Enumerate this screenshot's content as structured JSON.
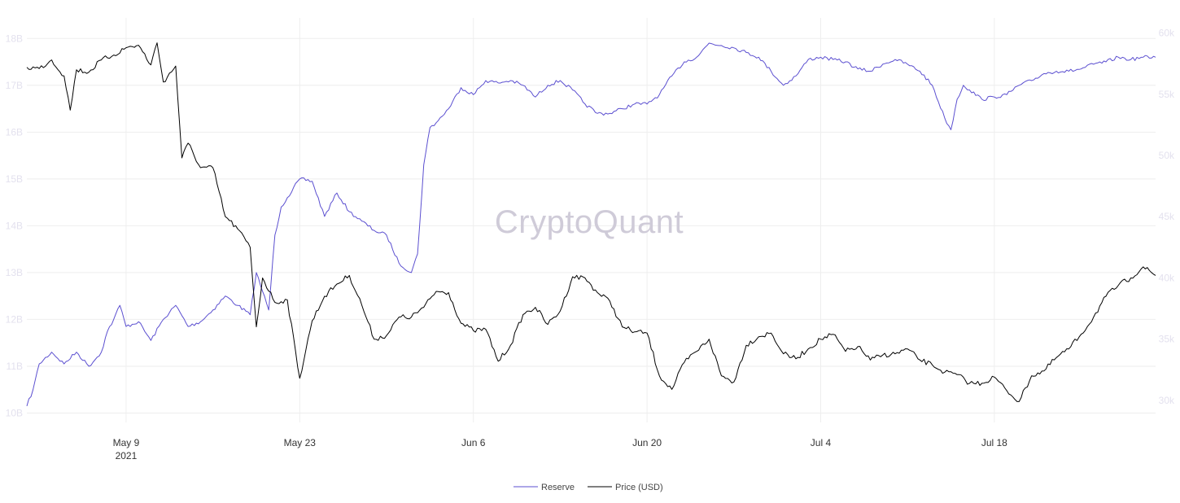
{
  "watermark": "CryptoQuant",
  "colors": {
    "reserve": "#5b4fd0",
    "price": "#000000",
    "grid": "#eeeeee"
  },
  "chart_data": {
    "type": "line",
    "grid": true,
    "legend_position": "bottom-center",
    "x_range": [
      "2021-05-01",
      "2021-07-31"
    ],
    "x_ticks": [
      {
        "date": "2021-05-09",
        "label": "May 9",
        "sublabel": "2021"
      },
      {
        "date": "2021-05-23",
        "label": "May 23",
        "sublabel": ""
      },
      {
        "date": "2021-06-06",
        "label": "Jun 6",
        "sublabel": ""
      },
      {
        "date": "2021-06-20",
        "label": "Jun 20",
        "sublabel": ""
      },
      {
        "date": "2021-07-04",
        "label": "Jul 4",
        "sublabel": ""
      },
      {
        "date": "2021-07-18",
        "label": "Jul 18",
        "sublabel": ""
      }
    ],
    "y_left": {
      "range": [
        9.8,
        18.3
      ],
      "ticks": [
        {
          "value": 10,
          "label": "10B"
        },
        {
          "value": 11,
          "label": "11B"
        },
        {
          "value": 12,
          "label": "12B"
        },
        {
          "value": 13,
          "label": "13B"
        },
        {
          "value": 14,
          "label": "14B"
        },
        {
          "value": 15,
          "label": "15B"
        },
        {
          "value": 16,
          "label": "16B"
        },
        {
          "value": 17,
          "label": "17B"
        },
        {
          "value": 18,
          "label": "18B"
        }
      ]
    },
    "y_right": {
      "range": [
        28200,
        60700
      ],
      "ticks": [
        {
          "value": 30000,
          "label": "30k"
        },
        {
          "value": 35000,
          "label": "35k"
        },
        {
          "value": 40000,
          "label": "40k"
        },
        {
          "value": 45000,
          "label": "45k"
        },
        {
          "value": 50000,
          "label": "50k"
        },
        {
          "value": 55000,
          "label": "55k"
        },
        {
          "value": 60000,
          "label": "60k"
        }
      ]
    },
    "series": [
      {
        "name": "Reserve",
        "axis": "left",
        "points": [
          [
            "2021-05-01",
            10.15
          ],
          [
            "2021-05-01T12",
            10.5
          ],
          [
            "2021-05-02",
            11.05
          ],
          [
            "2021-05-03",
            11.3
          ],
          [
            "2021-05-04",
            11.05
          ],
          [
            "2021-05-05",
            11.3
          ],
          [
            "2021-05-06",
            11.0
          ],
          [
            "2021-05-07",
            11.3
          ],
          [
            "2021-05-07T12",
            11.75
          ],
          [
            "2021-05-08",
            12.0
          ],
          [
            "2021-05-08T12",
            12.3
          ],
          [
            "2021-05-09",
            11.85
          ],
          [
            "2021-05-10",
            11.95
          ],
          [
            "2021-05-11",
            11.55
          ],
          [
            "2021-05-12",
            12.0
          ],
          [
            "2021-05-13",
            12.3
          ],
          [
            "2021-05-14",
            11.85
          ],
          [
            "2021-05-15",
            11.95
          ],
          [
            "2021-05-16",
            12.2
          ],
          [
            "2021-05-17",
            12.5
          ],
          [
            "2021-05-18",
            12.3
          ],
          [
            "2021-05-19",
            12.1
          ],
          [
            "2021-05-19T12",
            13.0
          ],
          [
            "2021-05-20",
            12.6
          ],
          [
            "2021-05-20T12",
            12.2
          ],
          [
            "2021-05-21",
            13.8
          ],
          [
            "2021-05-21T12",
            14.4
          ],
          [
            "2021-05-22",
            14.6
          ],
          [
            "2021-05-23",
            15.0
          ],
          [
            "2021-05-24",
            14.95
          ],
          [
            "2021-05-25",
            14.2
          ],
          [
            "2021-05-26",
            14.7
          ],
          [
            "2021-05-27",
            14.3
          ],
          [
            "2021-05-28",
            14.1
          ],
          [
            "2021-05-29",
            13.9
          ],
          [
            "2021-05-30",
            13.8
          ],
          [
            "2021-05-31",
            13.2
          ],
          [
            "2021-06-01",
            13.0
          ],
          [
            "2021-06-01T12",
            13.4
          ],
          [
            "2021-06-02",
            15.3
          ],
          [
            "2021-06-02T12",
            16.1
          ],
          [
            "2021-06-03",
            16.2
          ],
          [
            "2021-06-04",
            16.5
          ],
          [
            "2021-06-05",
            16.95
          ],
          [
            "2021-06-06",
            16.8
          ],
          [
            "2021-06-07",
            17.1
          ],
          [
            "2021-06-08",
            17.05
          ],
          [
            "2021-06-09",
            17.1
          ],
          [
            "2021-06-10",
            17.0
          ],
          [
            "2021-06-11",
            16.75
          ],
          [
            "2021-06-12",
            17.0
          ],
          [
            "2021-06-13",
            17.1
          ],
          [
            "2021-06-14",
            16.9
          ],
          [
            "2021-06-15",
            16.6
          ],
          [
            "2021-06-16",
            16.4
          ],
          [
            "2021-06-17",
            16.4
          ],
          [
            "2021-06-18",
            16.5
          ],
          [
            "2021-06-19",
            16.6
          ],
          [
            "2021-06-20",
            16.6
          ],
          [
            "2021-06-21",
            16.8
          ],
          [
            "2021-06-22",
            17.2
          ],
          [
            "2021-06-23",
            17.5
          ],
          [
            "2021-06-24",
            17.6
          ],
          [
            "2021-06-25",
            17.9
          ],
          [
            "2021-06-26",
            17.85
          ],
          [
            "2021-06-27",
            17.8
          ],
          [
            "2021-06-28",
            17.7
          ],
          [
            "2021-06-29",
            17.6
          ],
          [
            "2021-06-30",
            17.3
          ],
          [
            "2021-07-01",
            17.0
          ],
          [
            "2021-07-02",
            17.2
          ],
          [
            "2021-07-03",
            17.55
          ],
          [
            "2021-07-04",
            17.6
          ],
          [
            "2021-07-05",
            17.55
          ],
          [
            "2021-07-06",
            17.5
          ],
          [
            "2021-07-07",
            17.35
          ],
          [
            "2021-07-08",
            17.3
          ],
          [
            "2021-07-09",
            17.45
          ],
          [
            "2021-07-10",
            17.55
          ],
          [
            "2021-07-11",
            17.45
          ],
          [
            "2021-07-12",
            17.3
          ],
          [
            "2021-07-13",
            17.0
          ],
          [
            "2021-07-14",
            16.3
          ],
          [
            "2021-07-14T12",
            16.05
          ],
          [
            "2021-07-15",
            16.7
          ],
          [
            "2021-07-15T12",
            17.0
          ],
          [
            "2021-07-16",
            16.9
          ],
          [
            "2021-07-17",
            16.7
          ],
          [
            "2021-07-18",
            16.75
          ],
          [
            "2021-07-19",
            16.8
          ],
          [
            "2021-07-20",
            17.0
          ],
          [
            "2021-07-21",
            17.1
          ],
          [
            "2021-07-22",
            17.25
          ],
          [
            "2021-07-23",
            17.3
          ],
          [
            "2021-07-24",
            17.3
          ],
          [
            "2021-07-25",
            17.35
          ],
          [
            "2021-07-26",
            17.45
          ],
          [
            "2021-07-27",
            17.5
          ],
          [
            "2021-07-28",
            17.6
          ],
          [
            "2021-07-29",
            17.55
          ],
          [
            "2021-07-30",
            17.6
          ],
          [
            "2021-07-31",
            17.6
          ]
        ]
      },
      {
        "name": "Price (USD)",
        "axis": "right",
        "points": [
          [
            "2021-05-01",
            57200
          ],
          [
            "2021-05-02",
            57100
          ],
          [
            "2021-05-03",
            57800
          ],
          [
            "2021-05-04",
            56500
          ],
          [
            "2021-05-04T12",
            53700
          ],
          [
            "2021-05-05",
            57000
          ],
          [
            "2021-05-06",
            56800
          ],
          [
            "2021-05-07",
            57800
          ],
          [
            "2021-05-08",
            58200
          ],
          [
            "2021-05-09",
            58800
          ],
          [
            "2021-05-10",
            59000
          ],
          [
            "2021-05-11",
            57400
          ],
          [
            "2021-05-11T12",
            59200
          ],
          [
            "2021-05-12",
            56000
          ],
          [
            "2021-05-13",
            57300
          ],
          [
            "2021-05-13T12",
            49800
          ],
          [
            "2021-05-14",
            51000
          ],
          [
            "2021-05-15",
            49000
          ],
          [
            "2021-05-16",
            49000
          ],
          [
            "2021-05-17",
            45000
          ],
          [
            "2021-05-18",
            44000
          ],
          [
            "2021-05-19",
            42500
          ],
          [
            "2021-05-19T12",
            36000
          ],
          [
            "2021-05-20",
            40000
          ],
          [
            "2021-05-21",
            38000
          ],
          [
            "2021-05-22",
            38200
          ],
          [
            "2021-05-23",
            31800
          ],
          [
            "2021-05-24",
            36500
          ],
          [
            "2021-05-25",
            38500
          ],
          [
            "2021-05-26",
            39500
          ],
          [
            "2021-05-27",
            40200
          ],
          [
            "2021-05-28",
            37800
          ],
          [
            "2021-05-29",
            35000
          ],
          [
            "2021-05-30",
            35300
          ],
          [
            "2021-05-31",
            36800
          ],
          [
            "2021-06-01",
            36800
          ],
          [
            "2021-06-02",
            37600
          ],
          [
            "2021-06-03",
            38900
          ],
          [
            "2021-06-04",
            38800
          ],
          [
            "2021-06-05",
            36300
          ],
          [
            "2021-06-06",
            35700
          ],
          [
            "2021-06-07",
            35800
          ],
          [
            "2021-06-08",
            33200
          ],
          [
            "2021-06-09",
            34500
          ],
          [
            "2021-06-10",
            37000
          ],
          [
            "2021-06-11",
            37600
          ],
          [
            "2021-06-12",
            36200
          ],
          [
            "2021-06-13",
            37300
          ],
          [
            "2021-06-14",
            40100
          ],
          [
            "2021-06-15",
            40000
          ],
          [
            "2021-06-16",
            38800
          ],
          [
            "2021-06-17",
            38100
          ],
          [
            "2021-06-18",
            36000
          ],
          [
            "2021-06-19",
            35600
          ],
          [
            "2021-06-20",
            35500
          ],
          [
            "2021-06-21",
            32000
          ],
          [
            "2021-06-22",
            30900
          ],
          [
            "2021-06-23",
            33100
          ],
          [
            "2021-06-24",
            34000
          ],
          [
            "2021-06-25",
            35000
          ],
          [
            "2021-06-26",
            32000
          ],
          [
            "2021-06-27",
            31500
          ],
          [
            "2021-06-28",
            34500
          ],
          [
            "2021-06-29",
            35200
          ],
          [
            "2021-06-30",
            35500
          ],
          [
            "2021-07-01",
            33800
          ],
          [
            "2021-07-02",
            33400
          ],
          [
            "2021-07-03",
            34200
          ],
          [
            "2021-07-04",
            35000
          ],
          [
            "2021-07-05",
            35400
          ],
          [
            "2021-07-06",
            34000
          ],
          [
            "2021-07-07",
            34400
          ],
          [
            "2021-07-08",
            33300
          ],
          [
            "2021-07-09",
            33700
          ],
          [
            "2021-07-10",
            33800
          ],
          [
            "2021-07-11",
            34200
          ],
          [
            "2021-07-12",
            33300
          ],
          [
            "2021-07-13",
            32900
          ],
          [
            "2021-07-14",
            32300
          ],
          [
            "2021-07-15",
            32100
          ],
          [
            "2021-07-16",
            31400
          ],
          [
            "2021-07-17",
            31400
          ],
          [
            "2021-07-18",
            31900
          ],
          [
            "2021-07-19",
            30800
          ],
          [
            "2021-07-20",
            29900
          ],
          [
            "2021-07-21",
            32000
          ],
          [
            "2021-07-22",
            32400
          ],
          [
            "2021-07-23",
            33500
          ],
          [
            "2021-07-24",
            34200
          ],
          [
            "2021-07-25",
            35400
          ],
          [
            "2021-07-26",
            36800
          ],
          [
            "2021-07-27",
            38500
          ],
          [
            "2021-07-28",
            39400
          ],
          [
            "2021-07-29",
            40000
          ],
          [
            "2021-07-30",
            40900
          ],
          [
            "2021-07-31",
            40200
          ]
        ]
      }
    ]
  }
}
